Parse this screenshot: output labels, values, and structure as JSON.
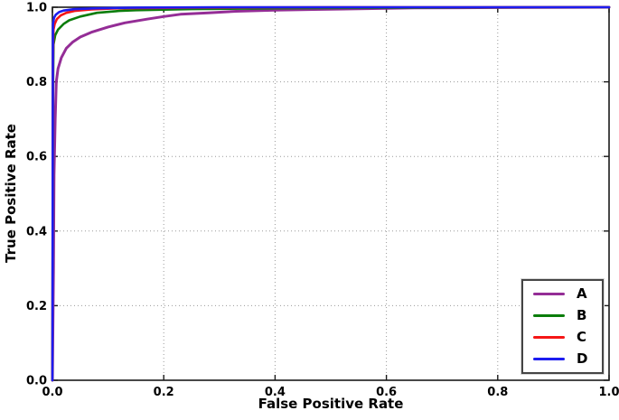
{
  "chart_data": {
    "type": "line",
    "title": "",
    "xlabel": "False Positive Rate",
    "ylabel": "True Positive Rate",
    "xlim": [
      0.0,
      1.0
    ],
    "ylim": [
      0.0,
      1.0
    ],
    "xticks": [
      0.0,
      0.2,
      0.4,
      0.6,
      0.8,
      1.0
    ],
    "yticks": [
      0.0,
      0.2,
      0.4,
      0.6,
      0.8,
      1.0
    ],
    "xtick_labels": [
      "0.0",
      "0.2",
      "0.4",
      "0.6",
      "0.8",
      "1.0"
    ],
    "ytick_labels": [
      "0.0",
      "0.2",
      "0.4",
      "0.6",
      "0.8",
      "1.0"
    ],
    "grid": "dotted",
    "grid_color": "#9a9a9a",
    "axis_color": "#1a1a1a",
    "background_color": "#ffffff",
    "legend_position": "lower right",
    "series": [
      {
        "name": "A",
        "color": "#942d96",
        "linewidth": 3,
        "points": [
          [
            0,
            0
          ],
          [
            0.002,
            0.3
          ],
          [
            0.003,
            0.55
          ],
          [
            0.005,
            0.7
          ],
          [
            0.007,
            0.8
          ],
          [
            0.01,
            0.835
          ],
          [
            0.016,
            0.865
          ],
          [
            0.025,
            0.89
          ],
          [
            0.036,
            0.906
          ],
          [
            0.05,
            0.92
          ],
          [
            0.07,
            0.933
          ],
          [
            0.1,
            0.947
          ],
          [
            0.13,
            0.958
          ],
          [
            0.17,
            0.968
          ],
          [
            0.2,
            0.975
          ],
          [
            0.23,
            0.981
          ],
          [
            0.28,
            0.985
          ],
          [
            0.33,
            0.989
          ],
          [
            0.4,
            0.992
          ],
          [
            0.47,
            0.994
          ],
          [
            0.55,
            0.996
          ],
          [
            0.65,
            0.998
          ],
          [
            0.8,
            0.999
          ],
          [
            1.0,
            1.0
          ]
        ]
      },
      {
        "name": "B",
        "color": "#0b7d0b",
        "linewidth": 2.6,
        "points": [
          [
            0,
            0
          ],
          [
            0.001,
            0.75
          ],
          [
            0.002,
            0.9
          ],
          [
            0.005,
            0.925
          ],
          [
            0.01,
            0.94
          ],
          [
            0.02,
            0.955
          ],
          [
            0.03,
            0.965
          ],
          [
            0.05,
            0.975
          ],
          [
            0.08,
            0.985
          ],
          [
            0.12,
            0.99
          ],
          [
            0.15,
            0.992
          ],
          [
            0.25,
            0.995
          ],
          [
            0.4,
            0.997
          ],
          [
            0.7,
            0.999
          ],
          [
            1.0,
            1.0
          ]
        ]
      },
      {
        "name": "C",
        "color": "#f51616",
        "linewidth": 2.6,
        "points": [
          [
            0,
            0
          ],
          [
            0.001,
            0.85
          ],
          [
            0.002,
            0.94
          ],
          [
            0.004,
            0.955
          ],
          [
            0.008,
            0.968
          ],
          [
            0.015,
            0.978
          ],
          [
            0.025,
            0.985
          ],
          [
            0.04,
            0.99
          ],
          [
            0.07,
            0.994
          ],
          [
            0.12,
            0.997
          ],
          [
            0.25,
            0.999
          ],
          [
            0.5,
            1.0
          ],
          [
            1.0,
            1.0
          ]
        ]
      },
      {
        "name": "D",
        "color": "#1c1cf0",
        "linewidth": 2.6,
        "points": [
          [
            0,
            0
          ],
          [
            0.001,
            0.955
          ],
          [
            0.003,
            0.972
          ],
          [
            0.006,
            0.98
          ],
          [
            0.012,
            0.987
          ],
          [
            0.02,
            0.991
          ],
          [
            0.04,
            0.995
          ],
          [
            0.08,
            0.997
          ],
          [
            0.15,
            0.999
          ],
          [
            0.3,
            1.0
          ],
          [
            1.0,
            1.0
          ]
        ]
      }
    ]
  }
}
